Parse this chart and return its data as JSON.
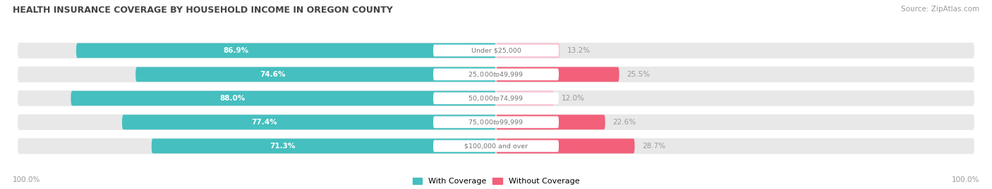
{
  "title": "HEALTH INSURANCE COVERAGE BY HOUSEHOLD INCOME IN OREGON COUNTY",
  "source": "Source: ZipAtlas.com",
  "categories": [
    "Under $25,000",
    "$25,000 to $49,999",
    "$50,000 to $74,999",
    "$75,000 to $99,999",
    "$100,000 and over"
  ],
  "with_coverage": [
    86.9,
    74.6,
    88.0,
    77.4,
    71.3
  ],
  "without_coverage": [
    13.2,
    25.5,
    12.0,
    22.6,
    28.7
  ],
  "color_with": "#45BFBF",
  "color_without": [
    "#F9C0CE",
    "#F2607A",
    "#F9C0CE",
    "#F2607A",
    "#F2607A"
  ],
  "color_bg_bar": "#E8E8E8",
  "color_bg_fig": "#FFFFFF",
  "color_title": "#444444",
  "color_source": "#999999",
  "color_label_white": "#FFFFFF",
  "color_label_dark": "#999999",
  "color_category": "#777777",
  "legend_with": "With Coverage",
  "legend_without": "Without Coverage",
  "color_legend_with": "#45BFBF",
  "color_legend_without": "#F2607A",
  "left_axis_label": "100.0%",
  "right_axis_label": "100.0%",
  "figsize": [
    14.06,
    2.69
  ],
  "dpi": 100
}
